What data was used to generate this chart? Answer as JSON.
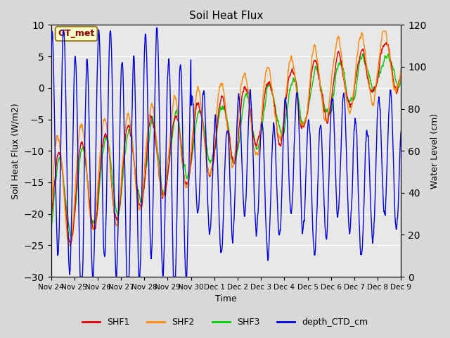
{
  "title": "Soil Heat Flux",
  "xlabel": "Time",
  "ylabel_left": "Soil Heat Flux (W/m2)",
  "ylabel_right": "Water Level (cm)",
  "ylim_left": [
    -30,
    10
  ],
  "ylim_right": [
    0,
    120
  ],
  "yticks_left": [
    -30,
    -25,
    -20,
    -15,
    -10,
    -5,
    0,
    5,
    10
  ],
  "yticks_right": [
    0,
    20,
    40,
    60,
    80,
    100,
    120
  ],
  "fig_facecolor": "#d8d8d8",
  "plot_facecolor": "#e8e8e8",
  "annotation_text": "GT_met",
  "annotation_facecolor": "#ffffcc",
  "annotation_edgecolor": "#a08020",
  "annotation_textcolor": "#8B0000",
  "line_colors": {
    "SHF1": "#dd0000",
    "SHF2": "#ff8800",
    "SHF3": "#00cc00",
    "depth_CTD_cm": "#0000dd"
  },
  "legend_labels": [
    "SHF1",
    "SHF2",
    "SHF3",
    "depth_CTD_cm"
  ],
  "x_tick_labels": [
    "Nov 24",
    "Nov 25",
    "Nov 26",
    "Nov 27",
    "Nov 28",
    "Nov 29",
    "Nov 30",
    "Dec 1",
    "Dec 2",
    "Dec 3",
    "Dec 4",
    "Dec 5",
    "Dec 6",
    "Dec 7",
    "Dec 8",
    "Dec 9"
  ],
  "n_points": 1500,
  "seed": 42
}
